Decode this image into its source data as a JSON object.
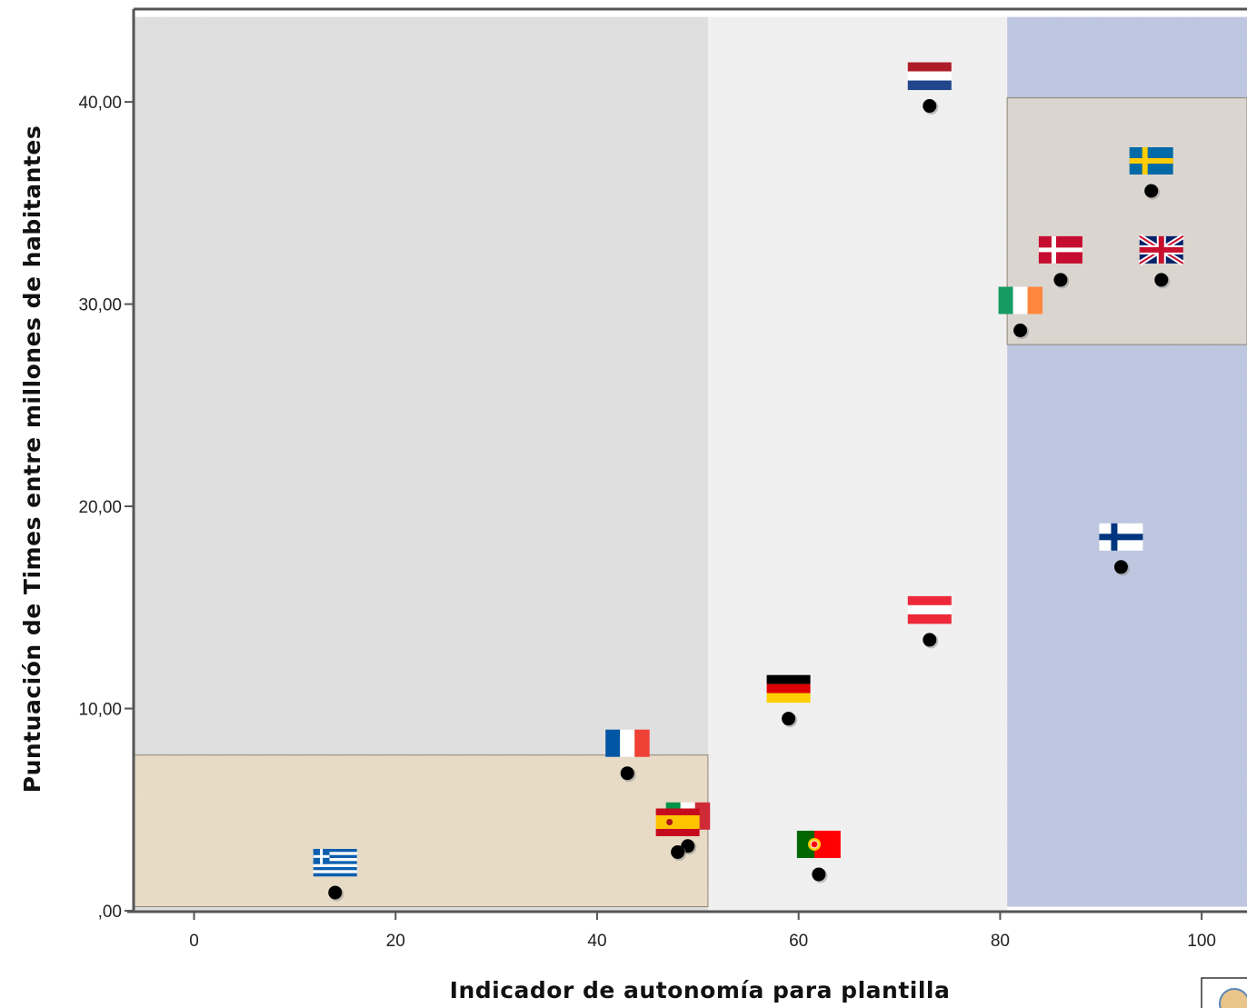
{
  "chart_data": {
    "type": "scatter",
    "title": "",
    "xlabel": "Indicador de autonomía para plantilla",
    "ylabel": "Puntuación de Times entre millones de habitantes",
    "xlim": [
      -6,
      104.5
    ],
    "ylim": [
      0,
      44.5
    ],
    "x_ticks": [
      {
        "value": 0,
        "label": "0"
      },
      {
        "value": 20,
        "label": "20"
      },
      {
        "value": 40,
        "label": "40"
      },
      {
        "value": 60,
        "label": "60"
      },
      {
        "value": 80,
        "label": "80"
      },
      {
        "value": 100,
        "label": "100"
      }
    ],
    "y_ticks": [
      {
        "value": 0,
        "label": ",00"
      },
      {
        "value": 10,
        "label": "10,00"
      },
      {
        "value": 20,
        "label": "20,00"
      },
      {
        "value": 30,
        "label": "30,00"
      },
      {
        "value": 40,
        "label": "40,00"
      }
    ],
    "regions": [
      {
        "name": "grey-region",
        "x": [
          -6,
          51
        ],
        "y": [
          0,
          44.2
        ],
        "color": "#dcdcdc"
      },
      {
        "name": "light-region",
        "x": [
          51,
          80.7
        ],
        "y": [
          0,
          44.2
        ],
        "color": "#efefef"
      },
      {
        "name": "blue-region",
        "x": [
          80.7,
          104.5
        ],
        "y": [
          0.2,
          44.2
        ],
        "color": "#bac3de"
      },
      {
        "name": "beige-low-region",
        "x": [
          -6,
          51
        ],
        "y": [
          0.2,
          7.7
        ],
        "color": "#e6d9c2"
      },
      {
        "name": "grey-high-region",
        "x": [
          80.7,
          104.5
        ],
        "y": [
          28,
          40.2
        ],
        "color": "#d8d2cc"
      }
    ],
    "points": [
      {
        "flag": "greece",
        "x": 14,
        "y": 0.9
      },
      {
        "flag": "france",
        "x": 43,
        "y": 6.8
      },
      {
        "flag": "italy",
        "x": 49,
        "y": 3.2
      },
      {
        "flag": "spain",
        "x": 48,
        "y": 2.9
      },
      {
        "flag": "germany",
        "x": 59,
        "y": 9.5
      },
      {
        "flag": "portugal",
        "x": 62,
        "y": 1.8
      },
      {
        "flag": "austria",
        "x": 73,
        "y": 13.4
      },
      {
        "flag": "netherlands",
        "x": 73,
        "y": 39.8
      },
      {
        "flag": "ireland",
        "x": 82,
        "y": 28.7
      },
      {
        "flag": "denmark",
        "x": 86,
        "y": 31.2
      },
      {
        "flag": "sweden",
        "x": 95,
        "y": 35.6
      },
      {
        "flag": "united-kingdom",
        "x": 96,
        "y": 31.2
      },
      {
        "flag": "finland",
        "x": 92,
        "y": 17.0
      }
    ],
    "colors": {
      "axis": "#555555",
      "point": "#000000",
      "border": "#8a8070"
    }
  }
}
